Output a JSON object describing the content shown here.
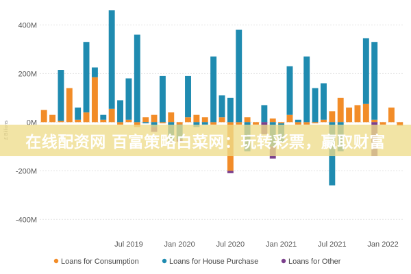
{
  "watermark": "在线配资网 百富策略白菜网：玩转彩票，赢取财富",
  "chart_data": {
    "type": "bar",
    "stacked": true,
    "ylabel": "£ Billions",
    "ylim": [
      -450,
      480
    ],
    "yticks": [
      {
        "value": 400,
        "label": "400M"
      },
      {
        "value": 200,
        "label": "200M"
      },
      {
        "value": 0,
        "label": "0M"
      },
      {
        "value": -200,
        "label": "-200M"
      },
      {
        "value": -400,
        "label": "-400M"
      }
    ],
    "x_tick_labels": [
      {
        "index": 10,
        "label": "Jul 2019"
      },
      {
        "index": 16,
        "label": "Jan 2020"
      },
      {
        "index": 22,
        "label": "Jul 2020"
      },
      {
        "index": 28,
        "label": "Jan 2021"
      },
      {
        "index": 34,
        "label": "Jul 2021"
      },
      {
        "index": 40,
        "label": "Jan 2022"
      }
    ],
    "grid": true,
    "legend_position": "bottom",
    "colors": {
      "consumption": "#f28c28",
      "house": "#1f8bb0",
      "other": "#7b3f8c",
      "residual": "#a9c9a0"
    },
    "series": [
      {
        "name": "Loans for Consumption",
        "key": "consumption",
        "values": [
          50,
          30,
          5,
          140,
          10,
          40,
          185,
          10,
          55,
          -10,
          10,
          -20,
          20,
          30,
          -5,
          40,
          -10,
          20,
          30,
          20,
          -10,
          20,
          -200,
          -10,
          20,
          -10,
          0,
          15,
          -5,
          30,
          -10,
          -10,
          -5,
          10,
          45,
          100,
          60,
          70,
          75,
          10,
          -10,
          60,
          -15
        ]
      },
      {
        "name": "Loans for House Purchase",
        "key": "house",
        "values": [
          0,
          0,
          210,
          0,
          50,
          290,
          40,
          20,
          405,
          90,
          170,
          360,
          -5,
          -20,
          190,
          -80,
          -60,
          170,
          -20,
          -10,
          270,
          90,
          100,
          380,
          -120,
          0,
          70,
          -100,
          -80,
          200,
          10,
          270,
          140,
          150,
          -260,
          -120,
          0,
          0,
          270,
          320,
          0,
          0,
          0
        ]
      },
      {
        "name": "Loans for Other",
        "key": "other",
        "values": [
          0,
          0,
          0,
          0,
          0,
          0,
          0,
          0,
          0,
          0,
          0,
          0,
          0,
          -20,
          0,
          -10,
          -10,
          0,
          0,
          0,
          0,
          0,
          -10,
          0,
          0,
          0,
          -50,
          -50,
          0,
          0,
          0,
          0,
          0,
          0,
          0,
          0,
          0,
          0,
          0,
          -140,
          0,
          0,
          0
        ]
      }
    ]
  }
}
